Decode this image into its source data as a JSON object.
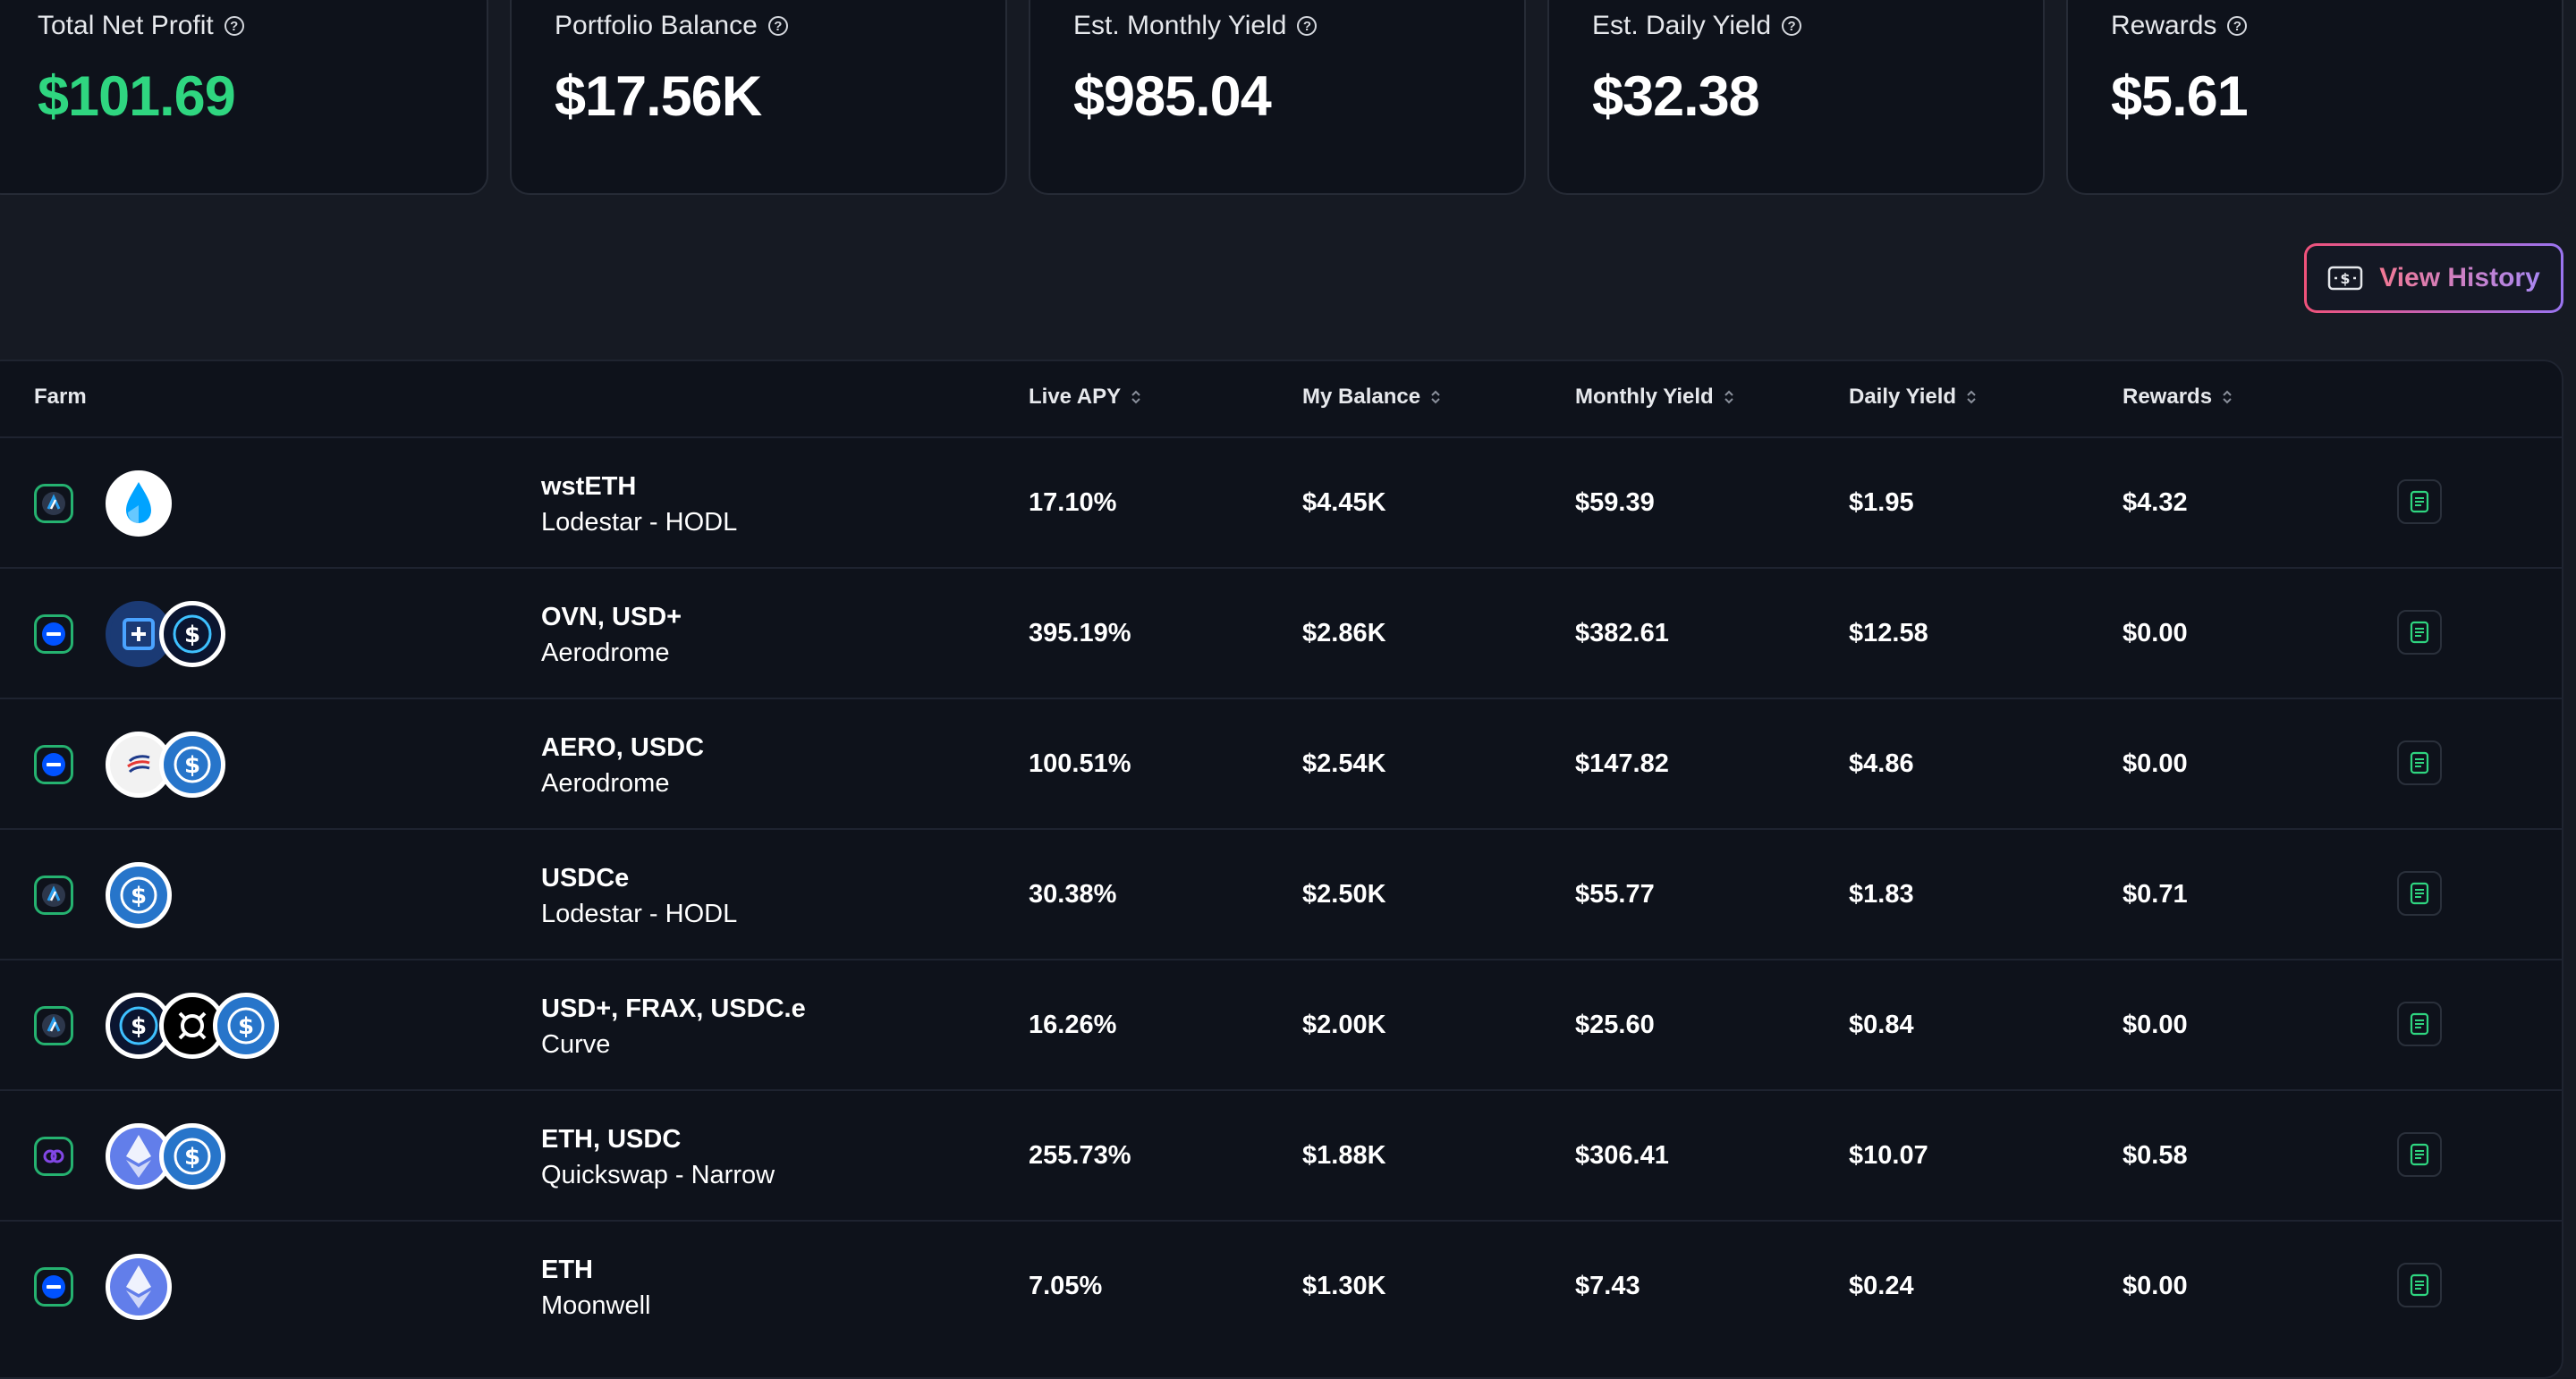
{
  "stats": [
    {
      "label": "Total Net Profit",
      "value": "$101.69",
      "highlight": "#2fd680"
    },
    {
      "label": "Portfolio Balance",
      "value": "$17.56K"
    },
    {
      "label": "Est. Monthly Yield",
      "value": "$985.04"
    },
    {
      "label": "Est. Daily Yield",
      "value": "$32.38"
    },
    {
      "label": "Rewards",
      "value": "$5.61"
    }
  ],
  "view_history_label": "View History",
  "table": {
    "headers": {
      "farm": "Farm",
      "live_apy": "Live APY",
      "my_balance": "My Balance",
      "monthly_yield": "Monthly Yield",
      "daily_yield": "Daily Yield",
      "rewards": "Rewards"
    },
    "rows": [
      {
        "chain": "arbitrum",
        "tokens": [
          "wsteth"
        ],
        "pair": "wstETH",
        "protocol": "Lodestar - HODL",
        "apy": "17.10%",
        "balance": "$4.45K",
        "monthly": "$59.39",
        "daily": "$1.95",
        "rewards": "$4.32"
      },
      {
        "chain": "base",
        "tokens": [
          "ovn",
          "usdplus"
        ],
        "pair": "OVN, USD+",
        "protocol": "Aerodrome",
        "apy": "395.19%",
        "balance": "$2.86K",
        "monthly": "$382.61",
        "daily": "$12.58",
        "rewards": "$0.00"
      },
      {
        "chain": "base",
        "tokens": [
          "aero",
          "usdc"
        ],
        "pair": "AERO, USDC",
        "protocol": "Aerodrome",
        "apy": "100.51%",
        "balance": "$2.54K",
        "monthly": "$147.82",
        "daily": "$4.86",
        "rewards": "$0.00"
      },
      {
        "chain": "arbitrum",
        "tokens": [
          "usdc"
        ],
        "pair": "USDCe",
        "protocol": "Lodestar - HODL",
        "apy": "30.38%",
        "balance": "$2.50K",
        "monthly": "$55.77",
        "daily": "$1.83",
        "rewards": "$0.71"
      },
      {
        "chain": "arbitrum",
        "tokens": [
          "usdplus",
          "frax",
          "usdc"
        ],
        "pair": "USD+, FRAX, USDC.e",
        "protocol": "Curve",
        "apy": "16.26%",
        "balance": "$2.00K",
        "monthly": "$25.60",
        "daily": "$0.84",
        "rewards": "$0.00"
      },
      {
        "chain": "polygon",
        "tokens": [
          "eth",
          "usdc"
        ],
        "pair": "ETH, USDC",
        "protocol": "Quickswap - Narrow",
        "apy": "255.73%",
        "balance": "$1.88K",
        "monthly": "$306.41",
        "daily": "$10.07",
        "rewards": "$0.58"
      },
      {
        "chain": "base",
        "tokens": [
          "eth"
        ],
        "pair": "ETH",
        "protocol": "Moonwell",
        "apy": "7.05%",
        "balance": "$1.30K",
        "monthly": "$7.43",
        "daily": "$0.24",
        "rewards": "$0.00"
      }
    ]
  }
}
